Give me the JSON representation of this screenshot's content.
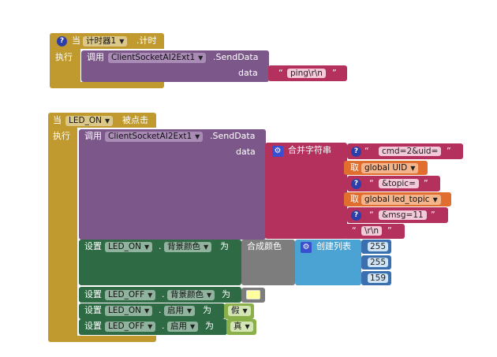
{
  "colors": {
    "event": "#c09a2e",
    "component_call": "#7b578a",
    "text": "#b5315d",
    "variable": "#e06e2f",
    "setter": "#2e6b45",
    "color": "#7d7d7d",
    "list": "#4aa3d3",
    "number": "#3a6fb0",
    "logic": "#8ab04a"
  },
  "block1": {
    "when": "当",
    "component": "计时器1",
    "event": ".计时",
    "do": "执行",
    "call": "调用",
    "call_component": "ClientSocketAI2Ext1",
    "method": ".SendData",
    "arg": "data",
    "value": "ping\\r\\n"
  },
  "block2": {
    "when": "当",
    "component": "LED_ON",
    "event": "被点击",
    "do": "执行",
    "call": "调用",
    "call_component": "ClientSocketAI2Ext1",
    "method": ".SendData",
    "arg": "data",
    "join_label": "合并字符串",
    "join_items": [
      {
        "kind": "text",
        "value": "cmd=2&uid="
      },
      {
        "kind": "get",
        "prefix": "取",
        "name": "global UID"
      },
      {
        "kind": "text",
        "value": "&topic="
      },
      {
        "kind": "get",
        "prefix": "取",
        "name": "global led_topic"
      },
      {
        "kind": "text",
        "value": "&msg=11"
      },
      {
        "kind": "text_plain",
        "value": "\\r\\n"
      }
    ],
    "set_prefix": "设置",
    "to_label": "为",
    "dot": ".",
    "set1": {
      "component": "LED_ON",
      "property": "背景颜色"
    },
    "make_color_label": "合成颜色",
    "make_list_label": "创建列表",
    "rgb": [
      "255",
      "255",
      "159"
    ],
    "set2": {
      "component": "LED_OFF",
      "property": "背景颜色"
    },
    "set3": {
      "component": "LED_ON",
      "property": "启用",
      "value": "假"
    },
    "set4": {
      "component": "LED_OFF",
      "property": "启用",
      "value": "真"
    }
  },
  "icons": {
    "mutator": "question-mark-icon",
    "gear": "gear-icon",
    "dropdown": "dropdown-arrow-icon"
  }
}
